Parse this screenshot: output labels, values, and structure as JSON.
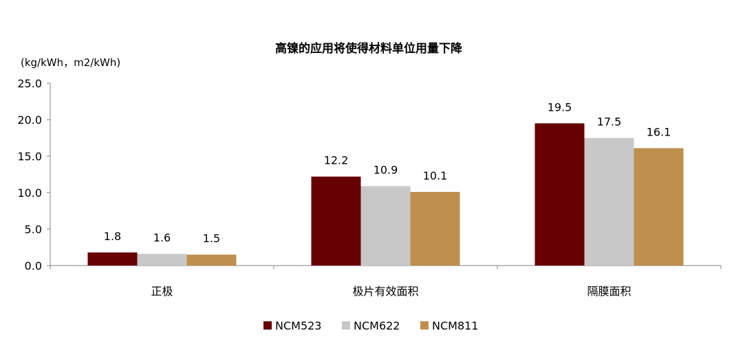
{
  "chart_data": {
    "type": "bar",
    "title": "高镍的应用将使得材料单位用量下降",
    "unit_label": "(kg/kWh，m2/kWh)",
    "categories": [
      "正极",
      "极片有效面积",
      "隔膜面积"
    ],
    "series": [
      {
        "name": "NCM523",
        "values": [
          1.8,
          12.2,
          19.5
        ],
        "color": "#660000"
      },
      {
        "name": "NCM622",
        "values": [
          1.6,
          10.9,
          17.5
        ],
        "color": "#c8c8c8"
      },
      {
        "name": "NCM811",
        "values": [
          1.5,
          10.1,
          16.1
        ],
        "color": "#bf8f4e"
      }
    ],
    "yticks": [
      "0.0",
      "5.0",
      "10.0",
      "15.0",
      "20.0",
      "25.0"
    ],
    "ylim": [
      0,
      25
    ],
    "grid": false,
    "legend_position": "bottom",
    "data_labels": [
      [
        "1.8",
        "1.6",
        "1.5"
      ],
      [
        "12.2",
        "10.9",
        "10.1"
      ],
      [
        "19.5",
        "17.5",
        "16.1"
      ]
    ]
  }
}
